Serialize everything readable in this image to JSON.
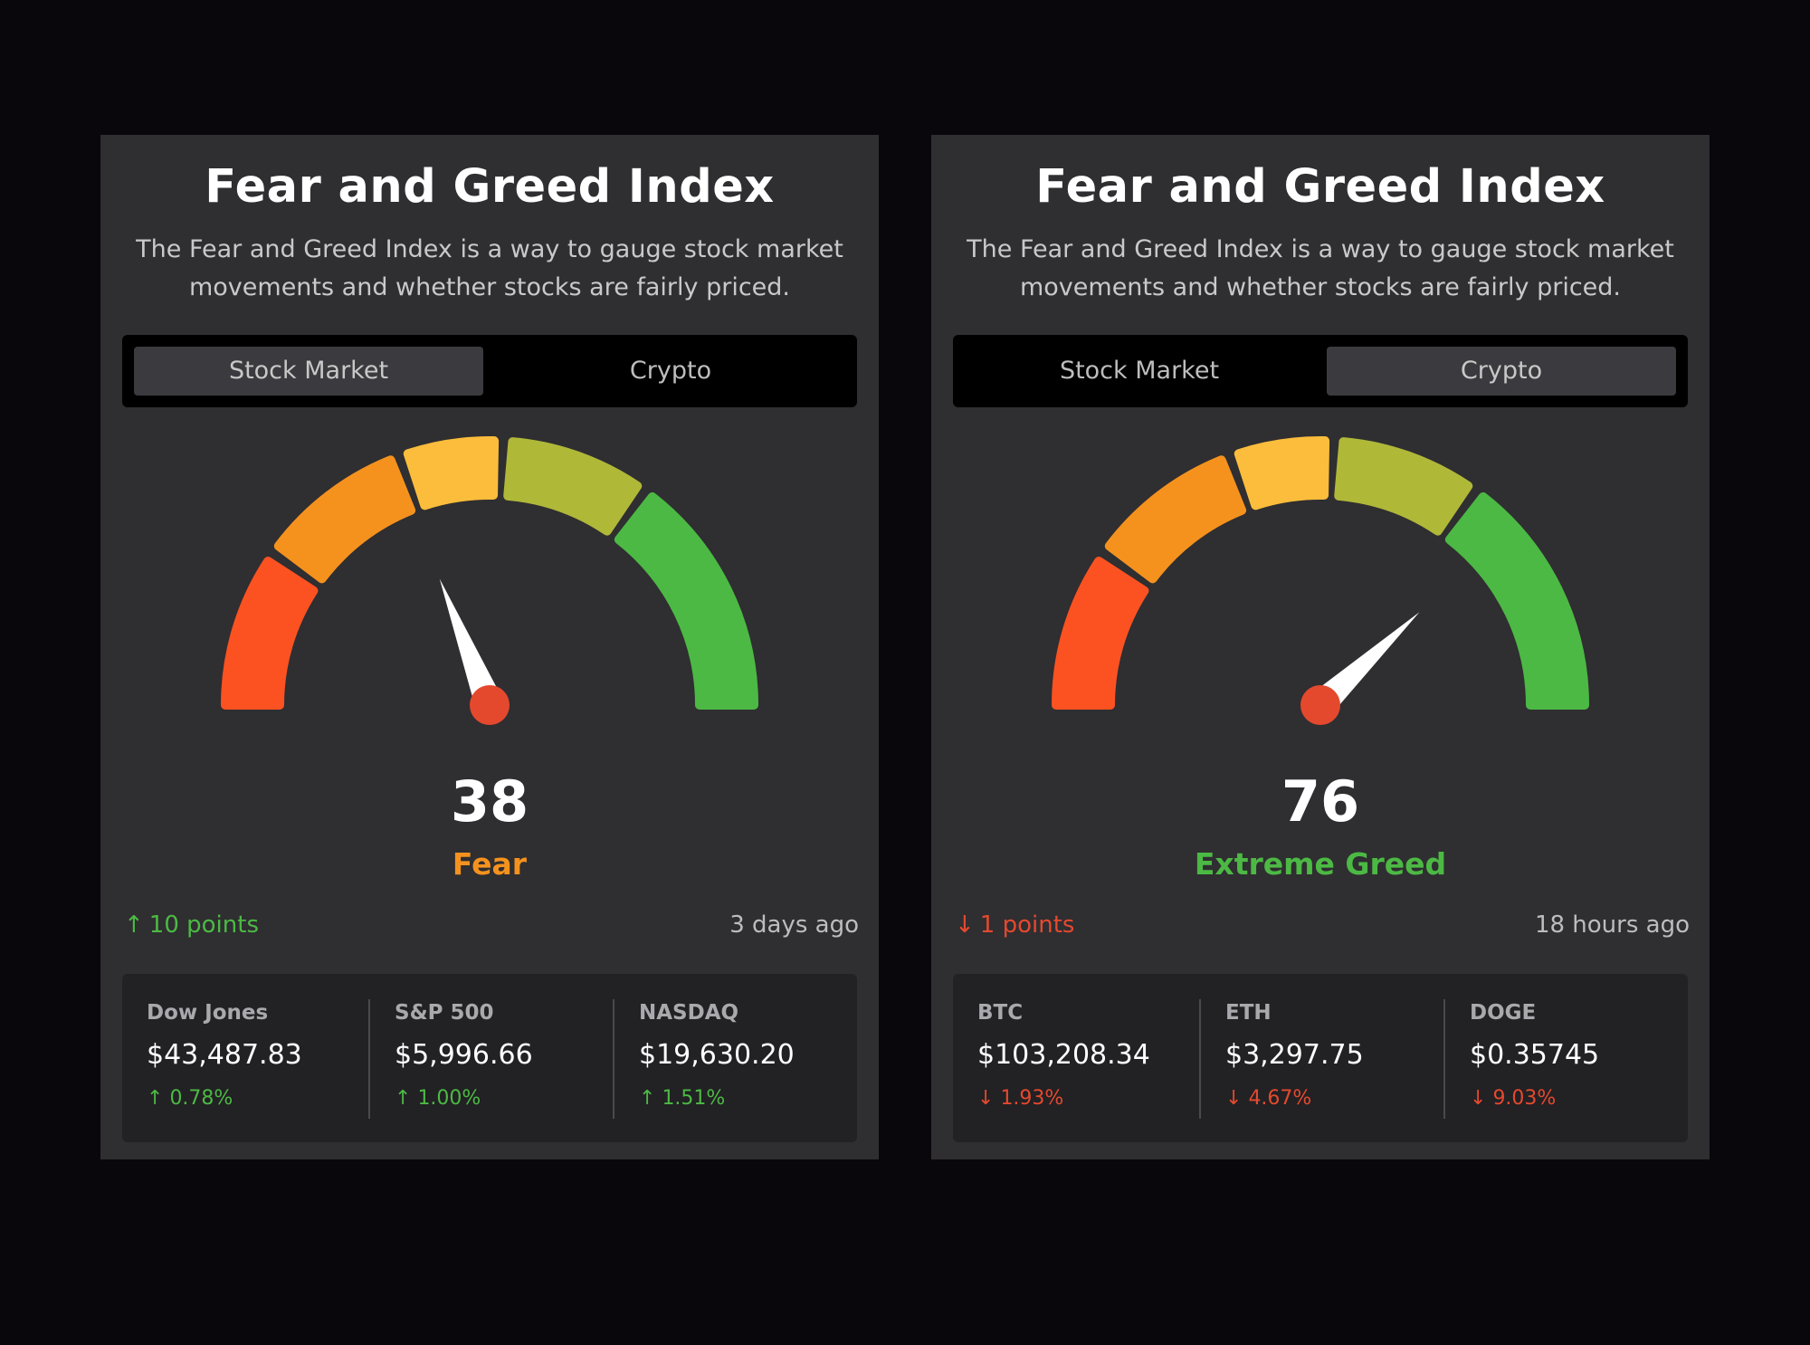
{
  "colors": {
    "page_bg": "#09060c",
    "card_bg": "#2f2e31",
    "up": "#4cb944",
    "down": "#e4492e",
    "fear": "#f5921e",
    "extreme_greed": "#4cb944",
    "needle": "#ffffff",
    "needle_hub": "#e4492e",
    "gauge_segments": [
      "#fc5221",
      "#f5921e",
      "#fbbd3b",
      "#b0b838",
      "#4cb944"
    ]
  },
  "cards": [
    {
      "title": "Fear and Greed Index",
      "description": "The Fear and Greed Index is a way to gauge stock market movements and whether stocks are fairly priced.",
      "tabs": [
        {
          "label": "Stock Market",
          "active": true
        },
        {
          "label": "Crypto",
          "active": false
        }
      ],
      "gauge": {
        "value": 38,
        "min": 0,
        "max": 100
      },
      "value": "38",
      "label": "Fear",
      "label_color": "#f5921e",
      "change": {
        "direction": "up",
        "icon": "arrow-up-icon",
        "arrow": "↑",
        "text": "10 points"
      },
      "updated": "3 days ago",
      "tickers": [
        {
          "name": "Dow Jones",
          "price": "$43,487.83",
          "direction": "up",
          "arrow": "↑",
          "change": "0.78%"
        },
        {
          "name": "S&P 500",
          "price": "$5,996.66",
          "direction": "up",
          "arrow": "↑",
          "change": "1.00%"
        },
        {
          "name": "NASDAQ",
          "price": "$19,630.20",
          "direction": "up",
          "arrow": "↑",
          "change": "1.51%"
        }
      ]
    },
    {
      "title": "Fear and Greed Index",
      "description": "The Fear and Greed Index is a way to gauge stock market movements and whether stocks are fairly priced.",
      "tabs": [
        {
          "label": "Stock Market",
          "active": false
        },
        {
          "label": "Crypto",
          "active": true
        }
      ],
      "gauge": {
        "value": 76,
        "min": 0,
        "max": 100
      },
      "value": "76",
      "label": "Extreme Greed",
      "label_color": "#4cb944",
      "change": {
        "direction": "down",
        "icon": "arrow-down-icon",
        "arrow": "↓",
        "text": "1 points"
      },
      "updated": "18 hours ago",
      "tickers": [
        {
          "name": "BTC",
          "price": "$103,208.34",
          "direction": "down",
          "arrow": "↓",
          "change": "1.93%"
        },
        {
          "name": "ETH",
          "price": "$3,297.75",
          "direction": "down",
          "arrow": "↓",
          "change": "4.67%"
        },
        {
          "name": "DOGE",
          "price": "$0.35745",
          "direction": "down",
          "arrow": "↓",
          "change": "9.03%"
        }
      ]
    }
  ]
}
